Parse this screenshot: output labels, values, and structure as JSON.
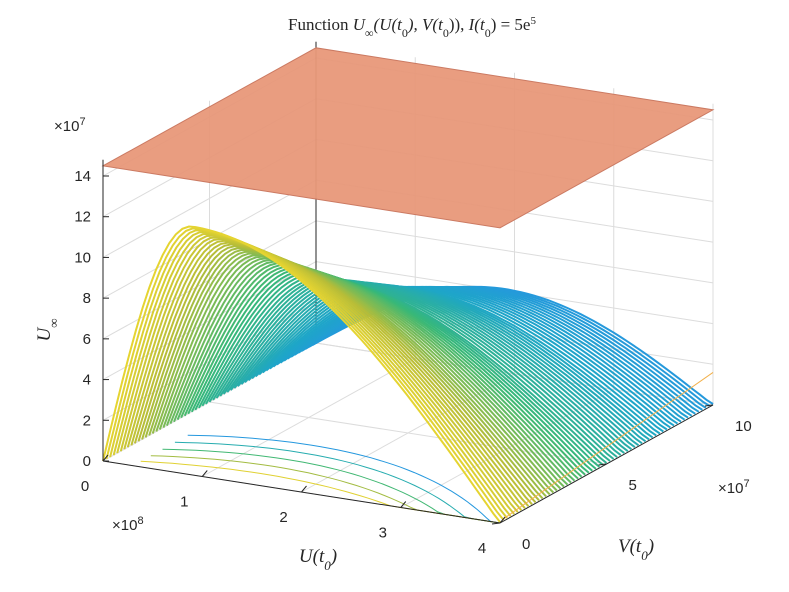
{
  "chart_data": {
    "type": "surface3d",
    "title": "Function U∞(U(t0), V(t0)), I(t0) = 5e5",
    "title_parts": {
      "prefix": "Function ",
      "func": "U",
      "func_sub": "∞",
      "args": "(U(t",
      "args_sub1": "0",
      "args_mid": "), V(t",
      "args_sub2": "0",
      "args_end": ")), ",
      "rhs_var": "I(t",
      "rhs_sub": "0",
      "rhs_eq": ") = 5e",
      "rhs_sup": "5"
    },
    "xlabel": {
      "main": "U(t",
      "sub": "0",
      "end": ")"
    },
    "ylabel": {
      "main": "V(t",
      "sub": "0",
      "end": ")"
    },
    "zlabel": {
      "main": "U",
      "sub": "∞"
    },
    "x_multiplier": "×10^8",
    "y_multiplier": "×10^7",
    "z_multiplier": "×10^7",
    "x_ticks": [
      "0",
      "1",
      "2",
      "3",
      "4"
    ],
    "y_ticks": [
      "0",
      "5",
      "10"
    ],
    "z_ticks": [
      "0",
      "2",
      "4",
      "6",
      "8",
      "10",
      "12",
      "14"
    ],
    "xlim": [
      0,
      4.0
    ],
    "ylim": [
      0,
      10
    ],
    "zlim": [
      0,
      14
    ],
    "units_note": "x in units of 1e8, y in units of 1e7, z in units of 1e7",
    "grid": true,
    "box": true,
    "colormap": "parula",
    "flat_plane": {
      "z": 14.5,
      "color": "#e8987a"
    },
    "surface_samples": [
      {
        "y": 0,
        "x_peak": 0.9,
        "z_peak": 12.2
      },
      {
        "y": 2.5,
        "x_peak": 1.0,
        "z_peak": 9.5
      },
      {
        "y": 5,
        "x_peak": 1.2,
        "z_peak": 7.0
      },
      {
        "y": 7.5,
        "x_peak": 1.5,
        "z_peak": 5.3
      },
      {
        "y": 10,
        "x_peak": 1.9,
        "z_peak": 4.1
      }
    ],
    "colors": {
      "low": "#3e26a8",
      "mid": "#1ea6c8",
      "high": "#fade2e",
      "plane": "#e8987a",
      "axis": "#262626",
      "grid": "#dcdcdc"
    }
  }
}
